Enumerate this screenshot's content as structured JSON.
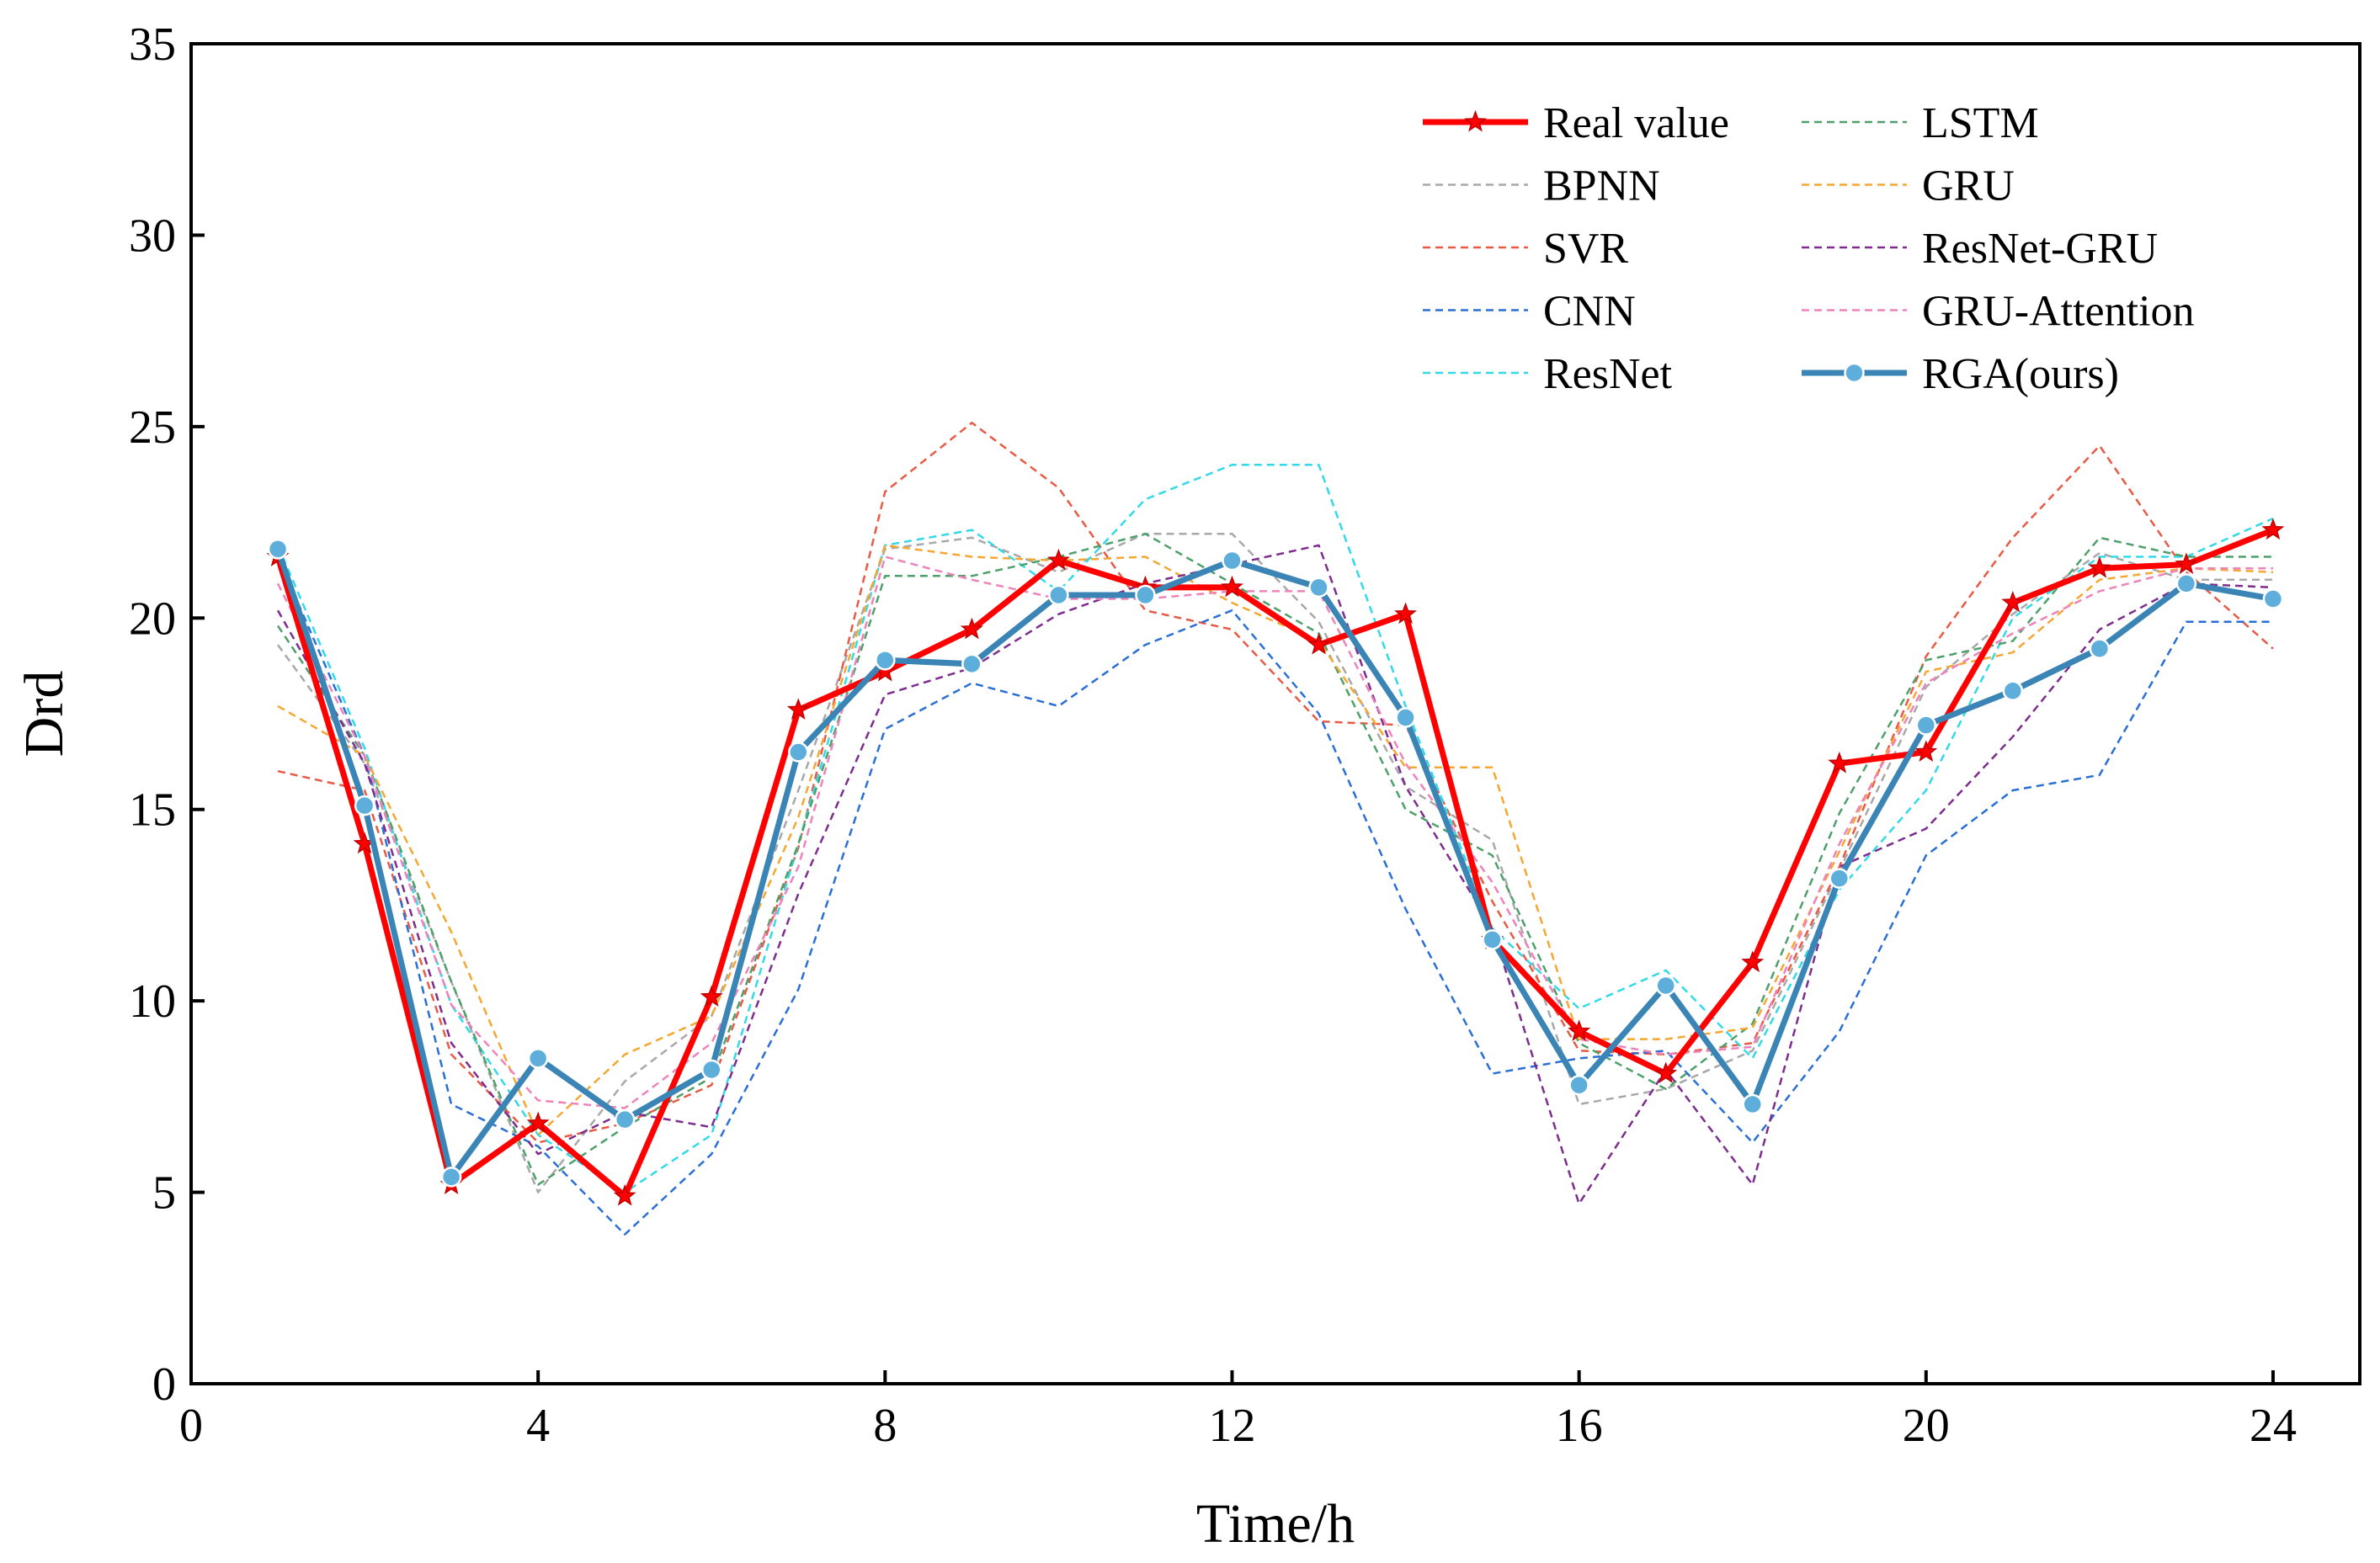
{
  "chart_data": {
    "type": "line",
    "title": "",
    "xlabel": "Time/h",
    "ylabel": "Drd",
    "xlim": [
      0,
      25
    ],
    "ylim": [
      0,
      35
    ],
    "xticks": [
      0,
      4,
      8,
      12,
      16,
      20,
      24
    ],
    "yticks": [
      0,
      5,
      10,
      15,
      20,
      25,
      30,
      35
    ],
    "grid": false,
    "legend_position": "top-right",
    "x": [
      1,
      2,
      3,
      4,
      5,
      6,
      7,
      8,
      9,
      10,
      11,
      12,
      13,
      14,
      15,
      16,
      17,
      18,
      19,
      20,
      21,
      22,
      23,
      24
    ],
    "series": [
      {
        "name": "Real value",
        "color": "#ff0000",
        "style": "solid",
        "marker": "star",
        "values": [
          21.6,
          14.1,
          5.2,
          6.8,
          4.9,
          10.1,
          17.6,
          18.6,
          19.7,
          21.5,
          20.8,
          20.8,
          19.3,
          20.1,
          11.6,
          9.2,
          8.1,
          11.0,
          16.2,
          16.5,
          20.4,
          21.3,
          21.4,
          22.3
        ]
      },
      {
        "name": "BPNN",
        "color": "#a8a8a8",
        "style": "dashed",
        "marker": "none",
        "values": [
          19.3,
          16.2,
          10.5,
          5.0,
          7.9,
          9.6,
          15.5,
          21.8,
          22.1,
          21.2,
          22.2,
          22.2,
          19.9,
          15.6,
          14.2,
          7.3,
          7.7,
          8.7,
          13.4,
          18.2,
          20.1,
          21.7,
          21.0,
          21.0
        ]
      },
      {
        "name": "SVR",
        "color": "#e85a45",
        "style": "dashed",
        "marker": "none",
        "values": [
          16.0,
          15.5,
          8.6,
          6.3,
          6.8,
          7.8,
          14.0,
          23.3,
          25.1,
          23.4,
          20.2,
          19.7,
          17.3,
          17.2,
          12.6,
          8.7,
          8.6,
          8.9,
          13.5,
          19.0,
          22.1,
          24.5,
          21.2,
          19.2
        ]
      },
      {
        "name": "CNN",
        "color": "#2a6fd6",
        "style": "dashed",
        "marker": "none",
        "values": [
          21.6,
          16.4,
          7.3,
          6.2,
          3.9,
          6.0,
          10.3,
          17.1,
          18.3,
          17.7,
          19.3,
          20.2,
          17.5,
          12.4,
          8.1,
          8.5,
          8.7,
          6.3,
          9.2,
          13.8,
          15.5,
          15.9,
          19.9,
          19.9
        ]
      },
      {
        "name": "ResNet",
        "color": "#33d9e8",
        "style": "dashed",
        "marker": "none",
        "values": [
          21.9,
          16.6,
          9.9,
          6.5,
          5.0,
          6.5,
          14.1,
          21.9,
          22.3,
          20.7,
          23.1,
          24.0,
          24.0,
          17.7,
          11.9,
          9.8,
          10.8,
          8.5,
          12.9,
          15.5,
          20.0,
          21.6,
          21.6,
          22.6
        ]
      },
      {
        "name": "LSTM",
        "color": "#4ea06a",
        "style": "dashed",
        "marker": "none",
        "values": [
          19.8,
          16.4,
          10.5,
          5.2,
          6.7,
          8.0,
          14.1,
          21.1,
          21.1,
          21.6,
          22.2,
          20.9,
          19.6,
          15.0,
          13.8,
          8.9,
          7.7,
          9.4,
          14.9,
          18.9,
          19.4,
          22.1,
          21.6,
          21.6
        ]
      },
      {
        "name": "GRU",
        "color": "#f4a732",
        "style": "dashed",
        "marker": "none",
        "values": [
          17.7,
          16.4,
          11.8,
          6.5,
          8.6,
          9.6,
          14.8,
          21.9,
          21.6,
          21.5,
          21.6,
          20.4,
          19.4,
          16.1,
          16.1,
          9.0,
          9.0,
          9.3,
          13.9,
          18.6,
          19.1,
          21.0,
          21.3,
          21.2
        ]
      },
      {
        "name": "ResNet-GRU",
        "color": "#7e2d8e",
        "style": "dashed",
        "marker": "none",
        "values": [
          20.2,
          16.2,
          8.9,
          6.0,
          7.1,
          6.7,
          12.8,
          18.0,
          18.7,
          20.1,
          20.9,
          21.4,
          21.9,
          15.6,
          11.9,
          4.7,
          8.2,
          5.2,
          13.5,
          14.5,
          16.9,
          19.7,
          20.9,
          20.8
        ]
      },
      {
        "name": "GRU-Attention",
        "color": "#ee83bb",
        "style": "dashed",
        "marker": "none",
        "values": [
          20.9,
          16.4,
          9.9,
          7.4,
          7.2,
          8.9,
          13.5,
          21.6,
          21.0,
          20.5,
          20.5,
          20.7,
          20.7,
          16.2,
          13.1,
          9.0,
          8.6,
          8.8,
          14.1,
          18.3,
          19.6,
          20.7,
          21.3,
          21.3
        ]
      },
      {
        "name": "RGA(ours)",
        "color": "#3a85b5",
        "style": "solid",
        "marker": "circle",
        "values": [
          21.8,
          15.1,
          5.4,
          8.5,
          6.9,
          8.2,
          16.5,
          18.9,
          18.8,
          20.6,
          20.6,
          21.5,
          20.8,
          17.4,
          11.6,
          7.8,
          10.4,
          7.3,
          13.2,
          17.2,
          18.1,
          19.2,
          20.9,
          20.5
        ]
      }
    ]
  }
}
